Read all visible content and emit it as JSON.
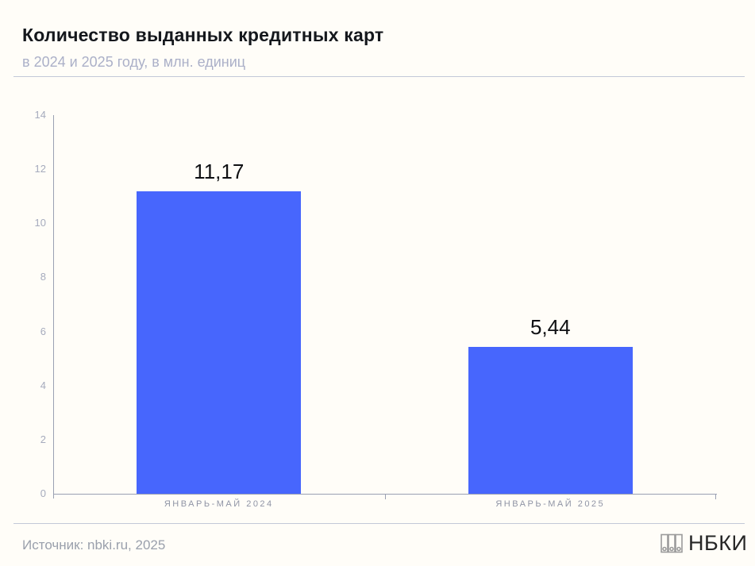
{
  "header": {
    "title": "Количество выданных кредитных карт",
    "subtitle": "в 2024 и 2025 году, в млн. единиц"
  },
  "chart_data": {
    "type": "bar",
    "title": "Количество выданных кредитных карт",
    "subtitle": "в 2024 и 2025 году, в млн. единиц",
    "categories": [
      "ЯНВАРЬ-МАЙ 2024",
      "ЯНВАРЬ-МАЙ 2025"
    ],
    "values": [
      11.17,
      5.44
    ],
    "value_labels": [
      "11,17",
      "5,44"
    ],
    "xlabel": "",
    "ylabel": "",
    "ylim": [
      0,
      14
    ],
    "yticks": [
      0,
      2,
      4,
      6,
      8,
      10,
      12,
      14
    ],
    "grid": false,
    "legend": "none",
    "bar_color": "#4766fd"
  },
  "footer": {
    "source": "Источник: nbki.ru, 2025",
    "logo_text": "НБКИ",
    "logo_icon": "binders-archive-icon"
  },
  "colors": {
    "background": "#fffdf8",
    "bar": "#4766fd",
    "title_text": "#14171c",
    "subtitle_text": "#abb0c8",
    "axis_line": "#9aa0b2",
    "y_tick_label": "#a6abbd",
    "category_label": "#8f94a5",
    "value_label": "#0f1013",
    "source_text": "#9aa0ac",
    "divider": "#c3c8d8",
    "logo_text": "#262626"
  }
}
